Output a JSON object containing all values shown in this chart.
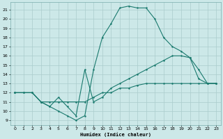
{
  "xlabel": "Humidex (Indice chaleur)",
  "bg_color": "#cce8e8",
  "grid_color": "#b0d0d0",
  "line_color": "#1a7a6e",
  "curve1_x": [
    0,
    1,
    2,
    3,
    4,
    5,
    6,
    7,
    8,
    9,
    10,
    11,
    12,
    13,
    14,
    15,
    16,
    17,
    18,
    19,
    20,
    21,
    22,
    23
  ],
  "curve1_y": [
    12,
    12,
    12,
    11,
    10.5,
    10,
    9.5,
    9,
    9.5,
    14.5,
    18,
    19.5,
    21.2,
    21.4,
    21.2,
    21.2,
    20,
    18,
    17,
    16.5,
    15.8,
    14.5,
    13,
    13
  ],
  "curve2_x": [
    0,
    2,
    3,
    4,
    5,
    6,
    7,
    8,
    9,
    10,
    11,
    12,
    13,
    14,
    15,
    16,
    17,
    18,
    19,
    20,
    21,
    22,
    23
  ],
  "curve2_y": [
    12,
    12,
    11,
    10.5,
    11.5,
    10.5,
    9.5,
    14.5,
    11,
    11.5,
    12.5,
    13,
    13.5,
    14,
    14.5,
    15,
    15.5,
    16,
    16,
    15.8,
    13.5,
    13,
    13
  ],
  "curve3_x": [
    0,
    1,
    2,
    3,
    4,
    5,
    6,
    7,
    8,
    9,
    10,
    11,
    12,
    13,
    14,
    15,
    16,
    17,
    18,
    19,
    20,
    21,
    22,
    23
  ],
  "curve3_y": [
    12,
    12,
    12,
    11,
    11,
    11,
    11,
    11,
    11,
    11.5,
    12,
    12,
    12.5,
    12.5,
    12.8,
    13,
    13,
    13,
    13,
    13,
    13,
    13,
    13,
    13
  ],
  "ylim": [
    8.5,
    21.8
  ],
  "xlim": [
    -0.5,
    23.5
  ],
  "yticks": [
    9,
    10,
    11,
    12,
    13,
    14,
    15,
    16,
    17,
    18,
    19,
    20,
    21
  ],
  "xticks": [
    0,
    1,
    2,
    3,
    4,
    5,
    6,
    7,
    8,
    9,
    10,
    11,
    12,
    13,
    14,
    15,
    16,
    17,
    18,
    19,
    20,
    21,
    22,
    23
  ]
}
